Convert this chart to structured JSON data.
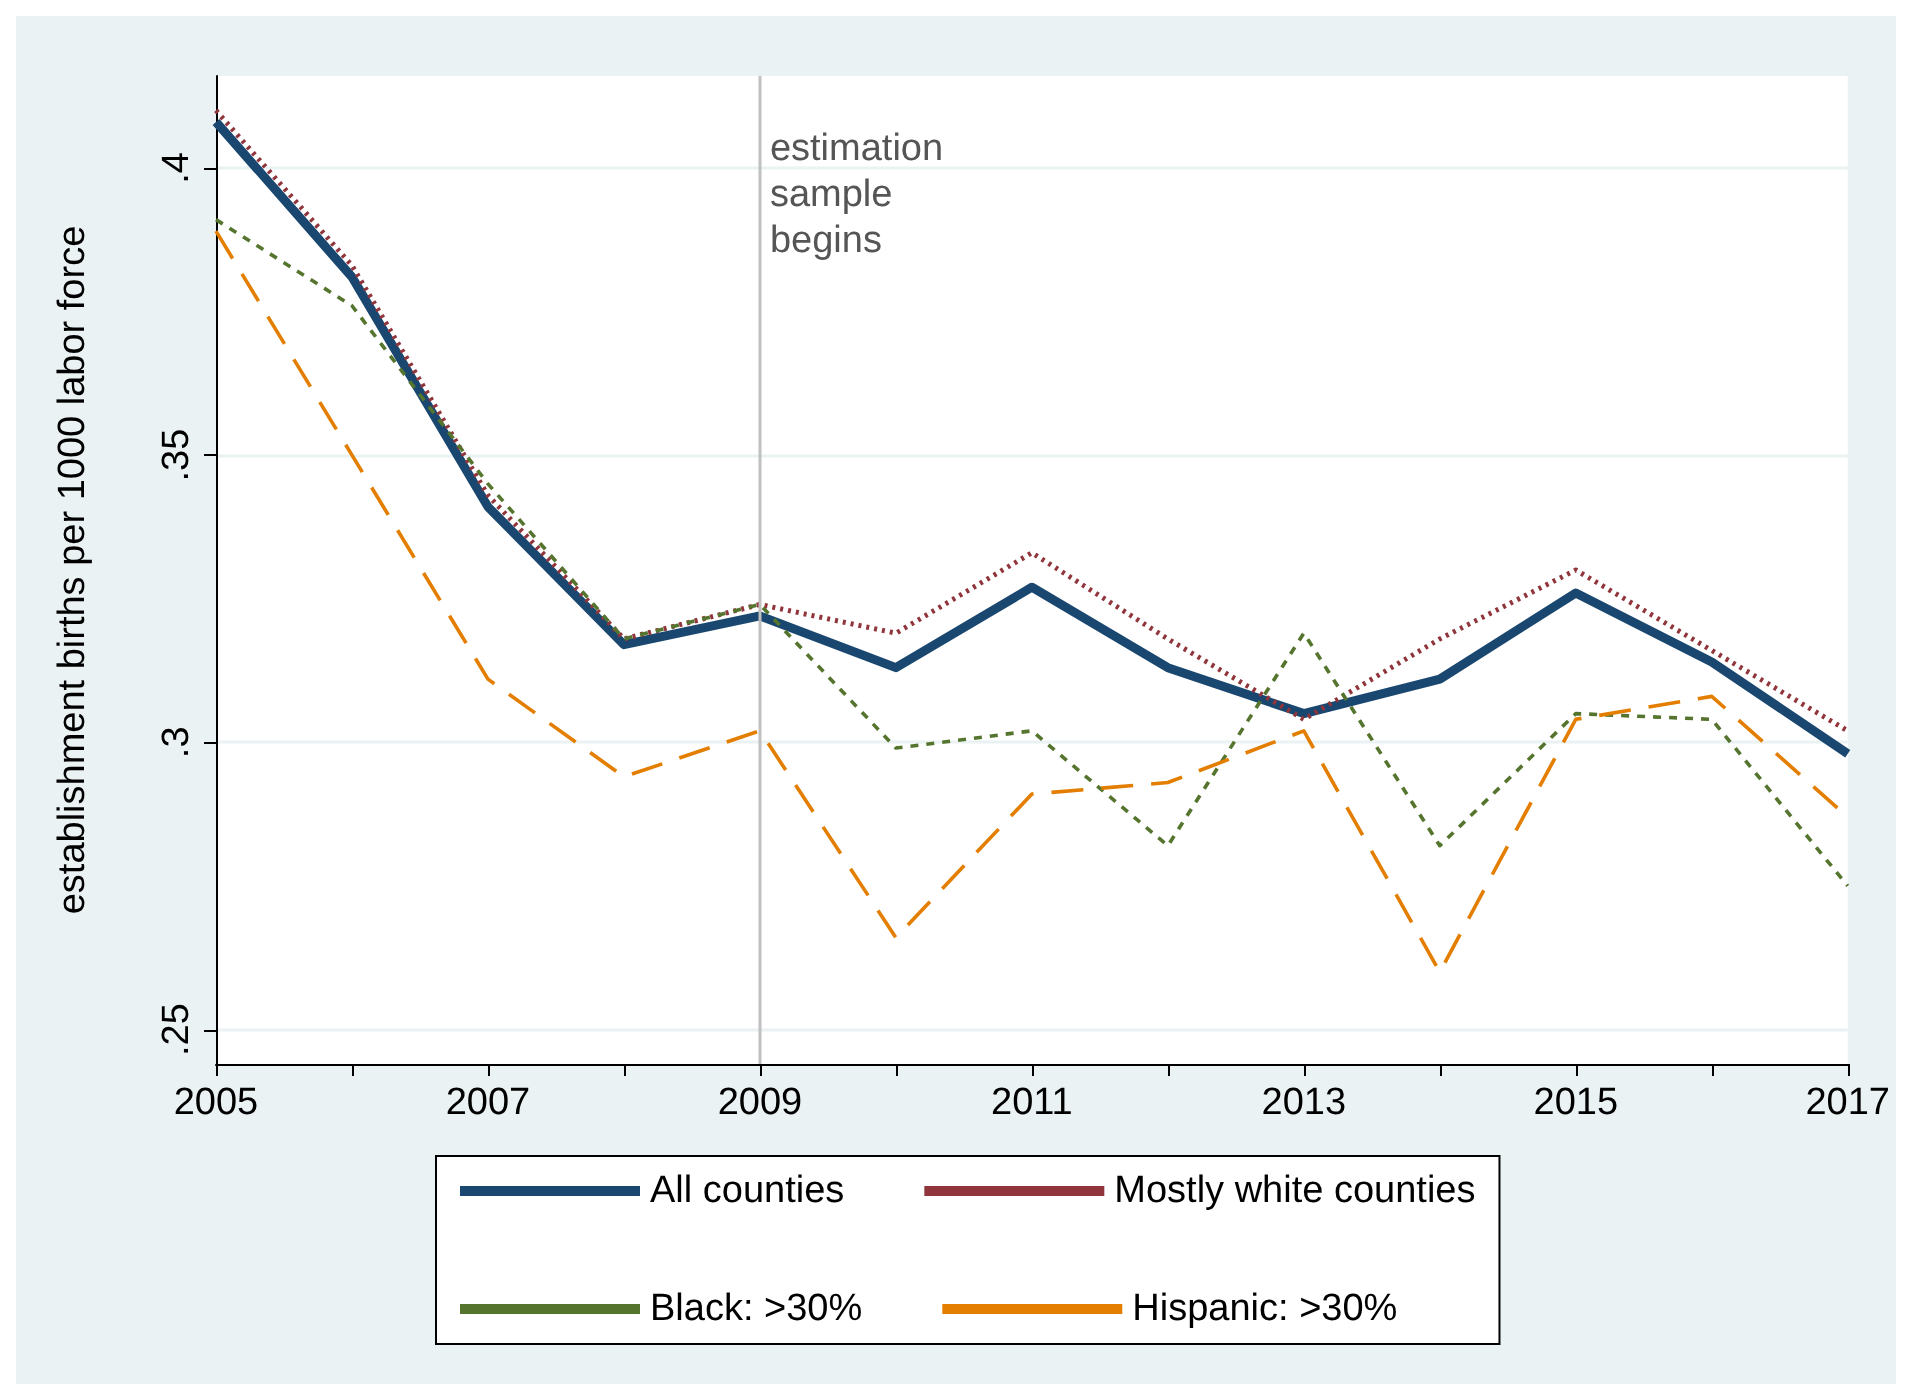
{
  "chart_data": {
    "type": "line",
    "ylabel": "establishment births per 1000 labor force",
    "x": [
      2005,
      2006,
      2007,
      2008,
      2009,
      2010,
      2011,
      2012,
      2013,
      2014,
      2015,
      2016,
      2017
    ],
    "series": [
      {
        "name": "All counties",
        "color": "#1a476f",
        "line_style": "solid",
        "values": [
          0.408,
          0.381,
          0.341,
          0.317,
          0.322,
          0.313,
          0.327,
          0.313,
          0.305,
          0.311,
          0.326,
          0.314,
          0.298
        ]
      },
      {
        "name": "Mostly white counties",
        "color": "#90353b",
        "line_style": "dotted",
        "values": [
          0.41,
          0.383,
          0.343,
          0.318,
          0.324,
          0.319,
          0.333,
          0.318,
          0.304,
          0.318,
          0.33,
          0.316,
          0.302
        ]
      },
      {
        "name": "Black: >30%",
        "color": "#55752f",
        "line_style": "dashed",
        "values": [
          0.391,
          0.376,
          0.345,
          0.318,
          0.324,
          0.299,
          0.302,
          0.282,
          0.319,
          0.282,
          0.305,
          0.304,
          0.275
        ]
      },
      {
        "name": "Hispanic: >30%",
        "color": "#e37e00",
        "line_style": "longdash",
        "values": [
          0.389,
          0.35,
          0.311,
          0.294,
          0.302,
          0.266,
          0.291,
          0.293,
          0.302,
          0.26,
          0.304,
          0.308,
          0.287
        ]
      }
    ],
    "xlim": [
      2005,
      2017
    ],
    "xticks": [
      2005,
      {
        "value": 2006,
        "label": null
      },
      2007,
      {
        "value": 2008,
        "label": null
      },
      2009,
      {
        "value": 2010,
        "label": null
      },
      2011,
      {
        "value": 2012,
        "label": null
      },
      2013,
      {
        "value": 2014,
        "label": null
      },
      2015,
      {
        "value": 2016,
        "label": null
      },
      2017
    ],
    "ylim": [
      0.244,
      0.416
    ],
    "yticks": [
      {
        "value": 0.25,
        "label": ".25"
      },
      {
        "value": 0.3,
        "label": ".3"
      },
      {
        "value": 0.35,
        "label": ".35"
      },
      {
        "value": 0.4,
        "label": ".4"
      }
    ],
    "ref_lines": [
      {
        "axis": "x",
        "value": 2009,
        "label": "estimation\nsample\nbegins",
        "color": "#c0c0c0"
      }
    ],
    "grid": "y",
    "legend": "bottom",
    "marker": "none"
  }
}
